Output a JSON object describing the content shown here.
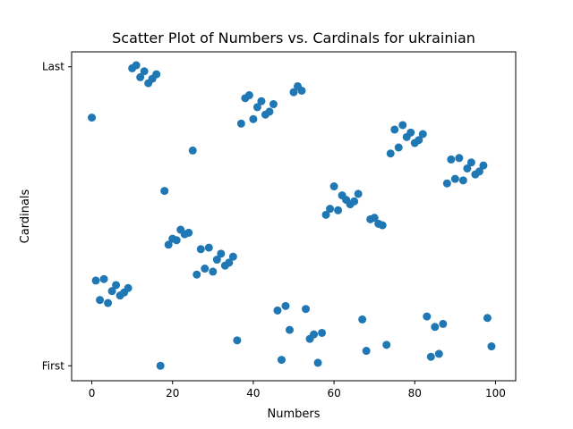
{
  "chart_data": {
    "type": "scatter",
    "title": "Scatter Plot of Numbers vs. Cardinals for ukrainian",
    "xlabel": "Numbers",
    "ylabel": "Cardinals",
    "xlim": [
      -5,
      105
    ],
    "ylim": [
      -0.05,
      1.05
    ],
    "xticks": [
      0,
      20,
      40,
      60,
      80,
      100
    ],
    "yticks": [
      {
        "value": 0,
        "label": "First"
      },
      {
        "value": 1,
        "label": "Last"
      }
    ],
    "marker_color": "#1f77b4",
    "grid": false,
    "legend": "none",
    "series": [
      {
        "x": [
          0,
          1,
          2,
          3,
          4,
          5,
          6,
          7,
          8,
          9,
          10,
          11,
          12,
          13,
          14,
          15,
          16,
          17,
          18,
          19,
          20,
          21,
          22,
          23,
          24,
          25,
          26,
          27,
          28,
          29,
          30,
          31,
          32,
          33,
          34,
          35,
          36,
          37,
          38,
          39,
          40,
          41,
          42,
          43,
          44,
          45,
          46,
          47,
          48,
          49,
          50,
          51,
          52,
          53,
          54,
          55,
          56,
          57,
          58,
          59,
          60,
          61,
          62,
          63,
          64,
          65,
          66,
          67,
          68,
          69,
          70,
          71,
          72,
          73,
          74,
          75,
          76,
          77,
          78,
          79,
          80,
          81,
          82,
          83,
          84,
          85,
          86,
          87,
          88,
          89,
          90,
          91,
          92,
          93,
          94,
          95,
          96,
          97,
          98,
          99
        ],
        "y": [
          0.83,
          0.285,
          0.22,
          0.29,
          0.21,
          0.25,
          0.27,
          0.235,
          0.245,
          0.26,
          0.995,
          1.005,
          0.965,
          0.985,
          0.945,
          0.96,
          0.975,
          0.0,
          0.585,
          0.405,
          0.425,
          0.42,
          0.455,
          0.44,
          0.445,
          0.72,
          0.305,
          0.39,
          0.325,
          0.395,
          0.315,
          0.355,
          0.375,
          0.335,
          0.345,
          0.365,
          0.085,
          0.81,
          0.895,
          0.905,
          0.825,
          0.865,
          0.885,
          0.84,
          0.85,
          0.875,
          0.185,
          0.02,
          0.2,
          0.12,
          0.915,
          0.935,
          0.92,
          0.19,
          0.09,
          0.105,
          0.01,
          0.11,
          0.505,
          0.525,
          0.6,
          0.52,
          0.57,
          0.555,
          0.54,
          0.55,
          0.575,
          0.155,
          0.05,
          0.49,
          0.495,
          0.475,
          0.47,
          0.07,
          0.71,
          0.79,
          0.73,
          0.805,
          0.765,
          0.78,
          0.745,
          0.755,
          0.775,
          0.165,
          0.03,
          0.13,
          0.04,
          0.14,
          0.61,
          0.69,
          0.625,
          0.695,
          0.62,
          0.66,
          0.68,
          0.64,
          0.65,
          0.67,
          0.16,
          0.065
        ]
      }
    ]
  }
}
